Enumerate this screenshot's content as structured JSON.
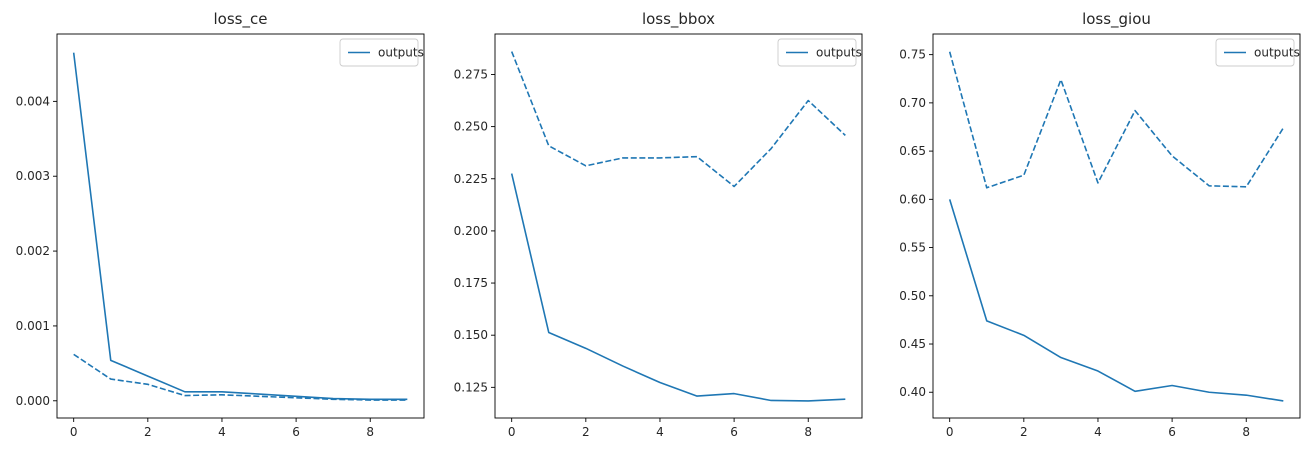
{
  "chart_data": [
    {
      "type": "line",
      "title": "loss_ce",
      "xlabel": "",
      "ylabel": "",
      "x": [
        0,
        1,
        2,
        3,
        4,
        5,
        6,
        7,
        8,
        9
      ],
      "xlim": [
        -0.45,
        9.45
      ],
      "ylim": [
        -0.00023,
        0.0049
      ],
      "xticks": [
        0,
        2,
        4,
        6,
        8
      ],
      "xtick_labels": [
        "0",
        "2",
        "4",
        "6",
        "8"
      ],
      "yticks": [
        0,
        0.001,
        0.002,
        0.003,
        0.004
      ],
      "ytick_labels": [
        "0.000",
        "0.001",
        "0.002",
        "0.003",
        "0.004"
      ],
      "grid": false,
      "legend": {
        "placement": "top-right",
        "entries": [
          "outputs"
        ]
      },
      "series": [
        {
          "name": "outputs",
          "style": "solid",
          "color": "#1f77b4",
          "values": [
            0.00465,
            0.00054,
            0.00033,
            0.00012,
            0.00012,
            9e-05,
            6e-05,
            3e-05,
            2e-05,
            2e-05
          ]
        },
        {
          "style": "dashed",
          "color": "#1f77b4",
          "values": [
            0.00062,
            0.00029,
            0.00022,
            7e-05,
            8e-05,
            6e-05,
            4e-05,
            2e-05,
            1e-05,
            1e-05
          ]
        }
      ]
    },
    {
      "type": "line",
      "title": "loss_bbox",
      "xlabel": "",
      "ylabel": "",
      "x": [
        0,
        1,
        2,
        3,
        4,
        5,
        6,
        7,
        8,
        9
      ],
      "xlim": [
        -0.45,
        9.45
      ],
      "ylim": [
        0.1103,
        0.2944
      ],
      "xticks": [
        0,
        2,
        4,
        6,
        8
      ],
      "xtick_labels": [
        "0",
        "2",
        "4",
        "6",
        "8"
      ],
      "yticks": [
        0.125,
        0.15,
        0.175,
        0.2,
        0.225,
        0.25,
        0.275
      ],
      "ytick_labels": [
        "0.125",
        "0.150",
        "0.175",
        "0.200",
        "0.225",
        "0.250",
        "0.275"
      ],
      "grid": false,
      "legend": {
        "placement": "top-right",
        "entries": [
          "outputs"
        ]
      },
      "series": [
        {
          "name": "outputs",
          "style": "solid",
          "color": "#1f77b4",
          "values": [
            0.2275,
            0.1513,
            0.1437,
            0.1352,
            0.1273,
            0.1208,
            0.122,
            0.1187,
            0.1185,
            0.1193
          ]
        },
        {
          "style": "dashed",
          "color": "#1f77b4",
          "values": [
            0.286,
            0.2408,
            0.2312,
            0.235,
            0.235,
            0.2356,
            0.2213,
            0.2395,
            0.2625,
            0.2458
          ]
        }
      ]
    },
    {
      "type": "line",
      "title": "loss_giou",
      "xlabel": "",
      "ylabel": "",
      "x": [
        0,
        1,
        2,
        3,
        4,
        5,
        6,
        7,
        8,
        9
      ],
      "xlim": [
        -0.45,
        9.45
      ],
      "ylim": [
        0.3733,
        0.7714
      ],
      "xticks": [
        0,
        2,
        4,
        6,
        8
      ],
      "xtick_labels": [
        "0",
        "2",
        "4",
        "6",
        "8"
      ],
      "yticks": [
        0.4,
        0.45,
        0.5,
        0.55,
        0.6,
        0.65,
        0.7,
        0.75
      ],
      "ytick_labels": [
        "0.40",
        "0.45",
        "0.50",
        "0.55",
        "0.60",
        "0.65",
        "0.70",
        "0.75"
      ],
      "grid": false,
      "legend": {
        "placement": "top-right",
        "entries": [
          "outputs"
        ]
      },
      "series": [
        {
          "name": "outputs",
          "style": "solid",
          "color": "#1f77b4",
          "values": [
            0.6,
            0.474,
            0.459,
            0.436,
            0.422,
            0.401,
            0.407,
            0.4,
            0.397,
            0.391
          ]
        },
        {
          "style": "dashed",
          "color": "#1f77b4",
          "values": [
            0.753,
            0.612,
            0.625,
            0.724,
            0.617,
            0.692,
            0.645,
            0.614,
            0.613,
            0.674
          ]
        }
      ]
    }
  ]
}
